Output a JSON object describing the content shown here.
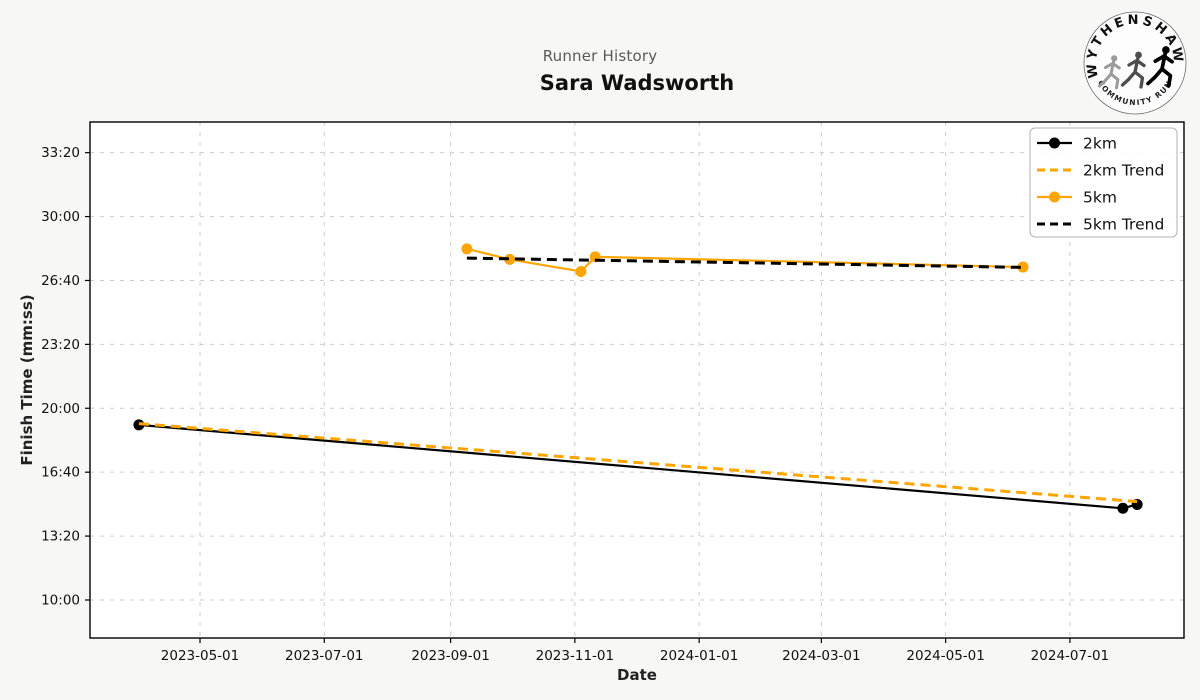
{
  "header": {
    "subtitle": "Runner History",
    "title": "Sara Wadsworth"
  },
  "logo": {
    "top_text": "WYTHENSHAWE",
    "bottom_text": "COMMUNITY RUN",
    "runner_colors": [
      "#9b9b9b",
      "#4d4d4d",
      "#000000"
    ]
  },
  "chart_data": {
    "type": "line",
    "title": "Runner History",
    "subtitle": "Sara Wadsworth",
    "xlabel": "Date",
    "ylabel": "Finish Time (mm:ss)",
    "x_domain": [
      "2023-03-08",
      "2024-08-26"
    ],
    "y_domain_seconds": [
      481,
      2096
    ],
    "x_ticks": [
      "2023-05-01",
      "2023-07-01",
      "2023-09-01",
      "2023-11-01",
      "2024-01-01",
      "2024-03-01",
      "2024-05-01",
      "2024-07-01"
    ],
    "y_ticks": [
      "10:00",
      "13:20",
      "16:40",
      "20:00",
      "23:20",
      "26:40",
      "30:00",
      "33:20"
    ],
    "grid": true,
    "colors": {
      "black_series": "#000000",
      "orange_series": "#FFA500"
    },
    "series": [
      {
        "name": "2km",
        "color": "#000000",
        "style": "solid",
        "marker": true,
        "points": [
          {
            "date": "2023-04-01",
            "time": "19:08"
          },
          {
            "date": "2024-07-27",
            "time": "14:47"
          },
          {
            "date": "2024-08-03",
            "time": "14:59"
          }
        ]
      },
      {
        "name": "2km Trend",
        "color": "#FFA500",
        "style": "dashed",
        "marker": false,
        "points": [
          {
            "date": "2023-04-01",
            "time": "19:12"
          },
          {
            "date": "2024-08-03",
            "time": "15:08"
          }
        ]
      },
      {
        "name": "5km",
        "color": "#FFA500",
        "style": "solid",
        "marker": true,
        "points": [
          {
            "date": "2023-09-09",
            "time": "28:19"
          },
          {
            "date": "2023-09-30",
            "time": "27:46"
          },
          {
            "date": "2023-11-04",
            "time": "27:08"
          },
          {
            "date": "2023-11-11",
            "time": "27:54"
          },
          {
            "date": "2024-06-08",
            "time": "27:22"
          }
        ]
      },
      {
        "name": "5km Trend",
        "color": "#000000",
        "style": "dashed",
        "marker": false,
        "points": [
          {
            "date": "2023-09-09",
            "time": "27:50"
          },
          {
            "date": "2024-06-08",
            "time": "27:21"
          }
        ]
      }
    ],
    "legend": {
      "position": "top-right",
      "entries": [
        "2km",
        "2km Trend",
        "5km",
        "5km Trend"
      ]
    }
  }
}
